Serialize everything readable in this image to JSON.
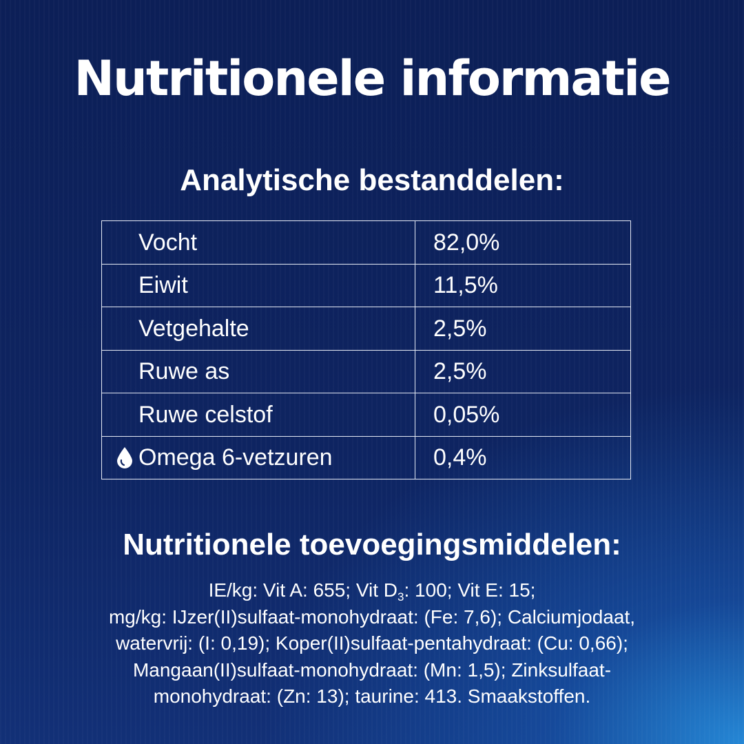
{
  "title": "Nutritionele informatie",
  "analytical": {
    "heading": "Analytische bestanddelen:",
    "rows": [
      {
        "name": "Vocht",
        "value": "82,0%",
        "icon": ""
      },
      {
        "name": "Eiwit",
        "value": "11,5%",
        "icon": ""
      },
      {
        "name": "Vetgehalte",
        "value": "2,5%",
        "icon": ""
      },
      {
        "name": "Ruwe as",
        "value": "2,5%",
        "icon": ""
      },
      {
        "name": "Ruwe celstof",
        "value": "0,05%",
        "icon": ""
      },
      {
        "name": "Omega 6-vetzuren",
        "value": "0,4%",
        "icon": "water-drop-icon"
      }
    ]
  },
  "additives": {
    "heading": "Nutritionele toevoegingsmiddelen:",
    "line1_pre": "IE/kg: Vit A: 655; Vit D",
    "line1_sub": "3",
    "line1_post": ": 100; Vit E: 15;",
    "line2": "mg/kg: IJzer(II)sulfaat-monohydraat: (Fe: 7,6); Calciumjodaat,",
    "line3": "watervrij: (I: 0,19); Koper(II)sulfaat-pentahydraat: (Cu: 0,66);",
    "line4": "Mangaan(II)sulfaat-monohydraat: (Mn: 1,5); Zinksulfaat-",
    "line5": "monohydraat: (Zn: 13); taurine: 413. Smaakstoffen."
  },
  "colors": {
    "background_top": "#0c1f57",
    "background_glow": "#2896e6",
    "text": "#ffffff",
    "table_border": "#e6ebf5"
  }
}
